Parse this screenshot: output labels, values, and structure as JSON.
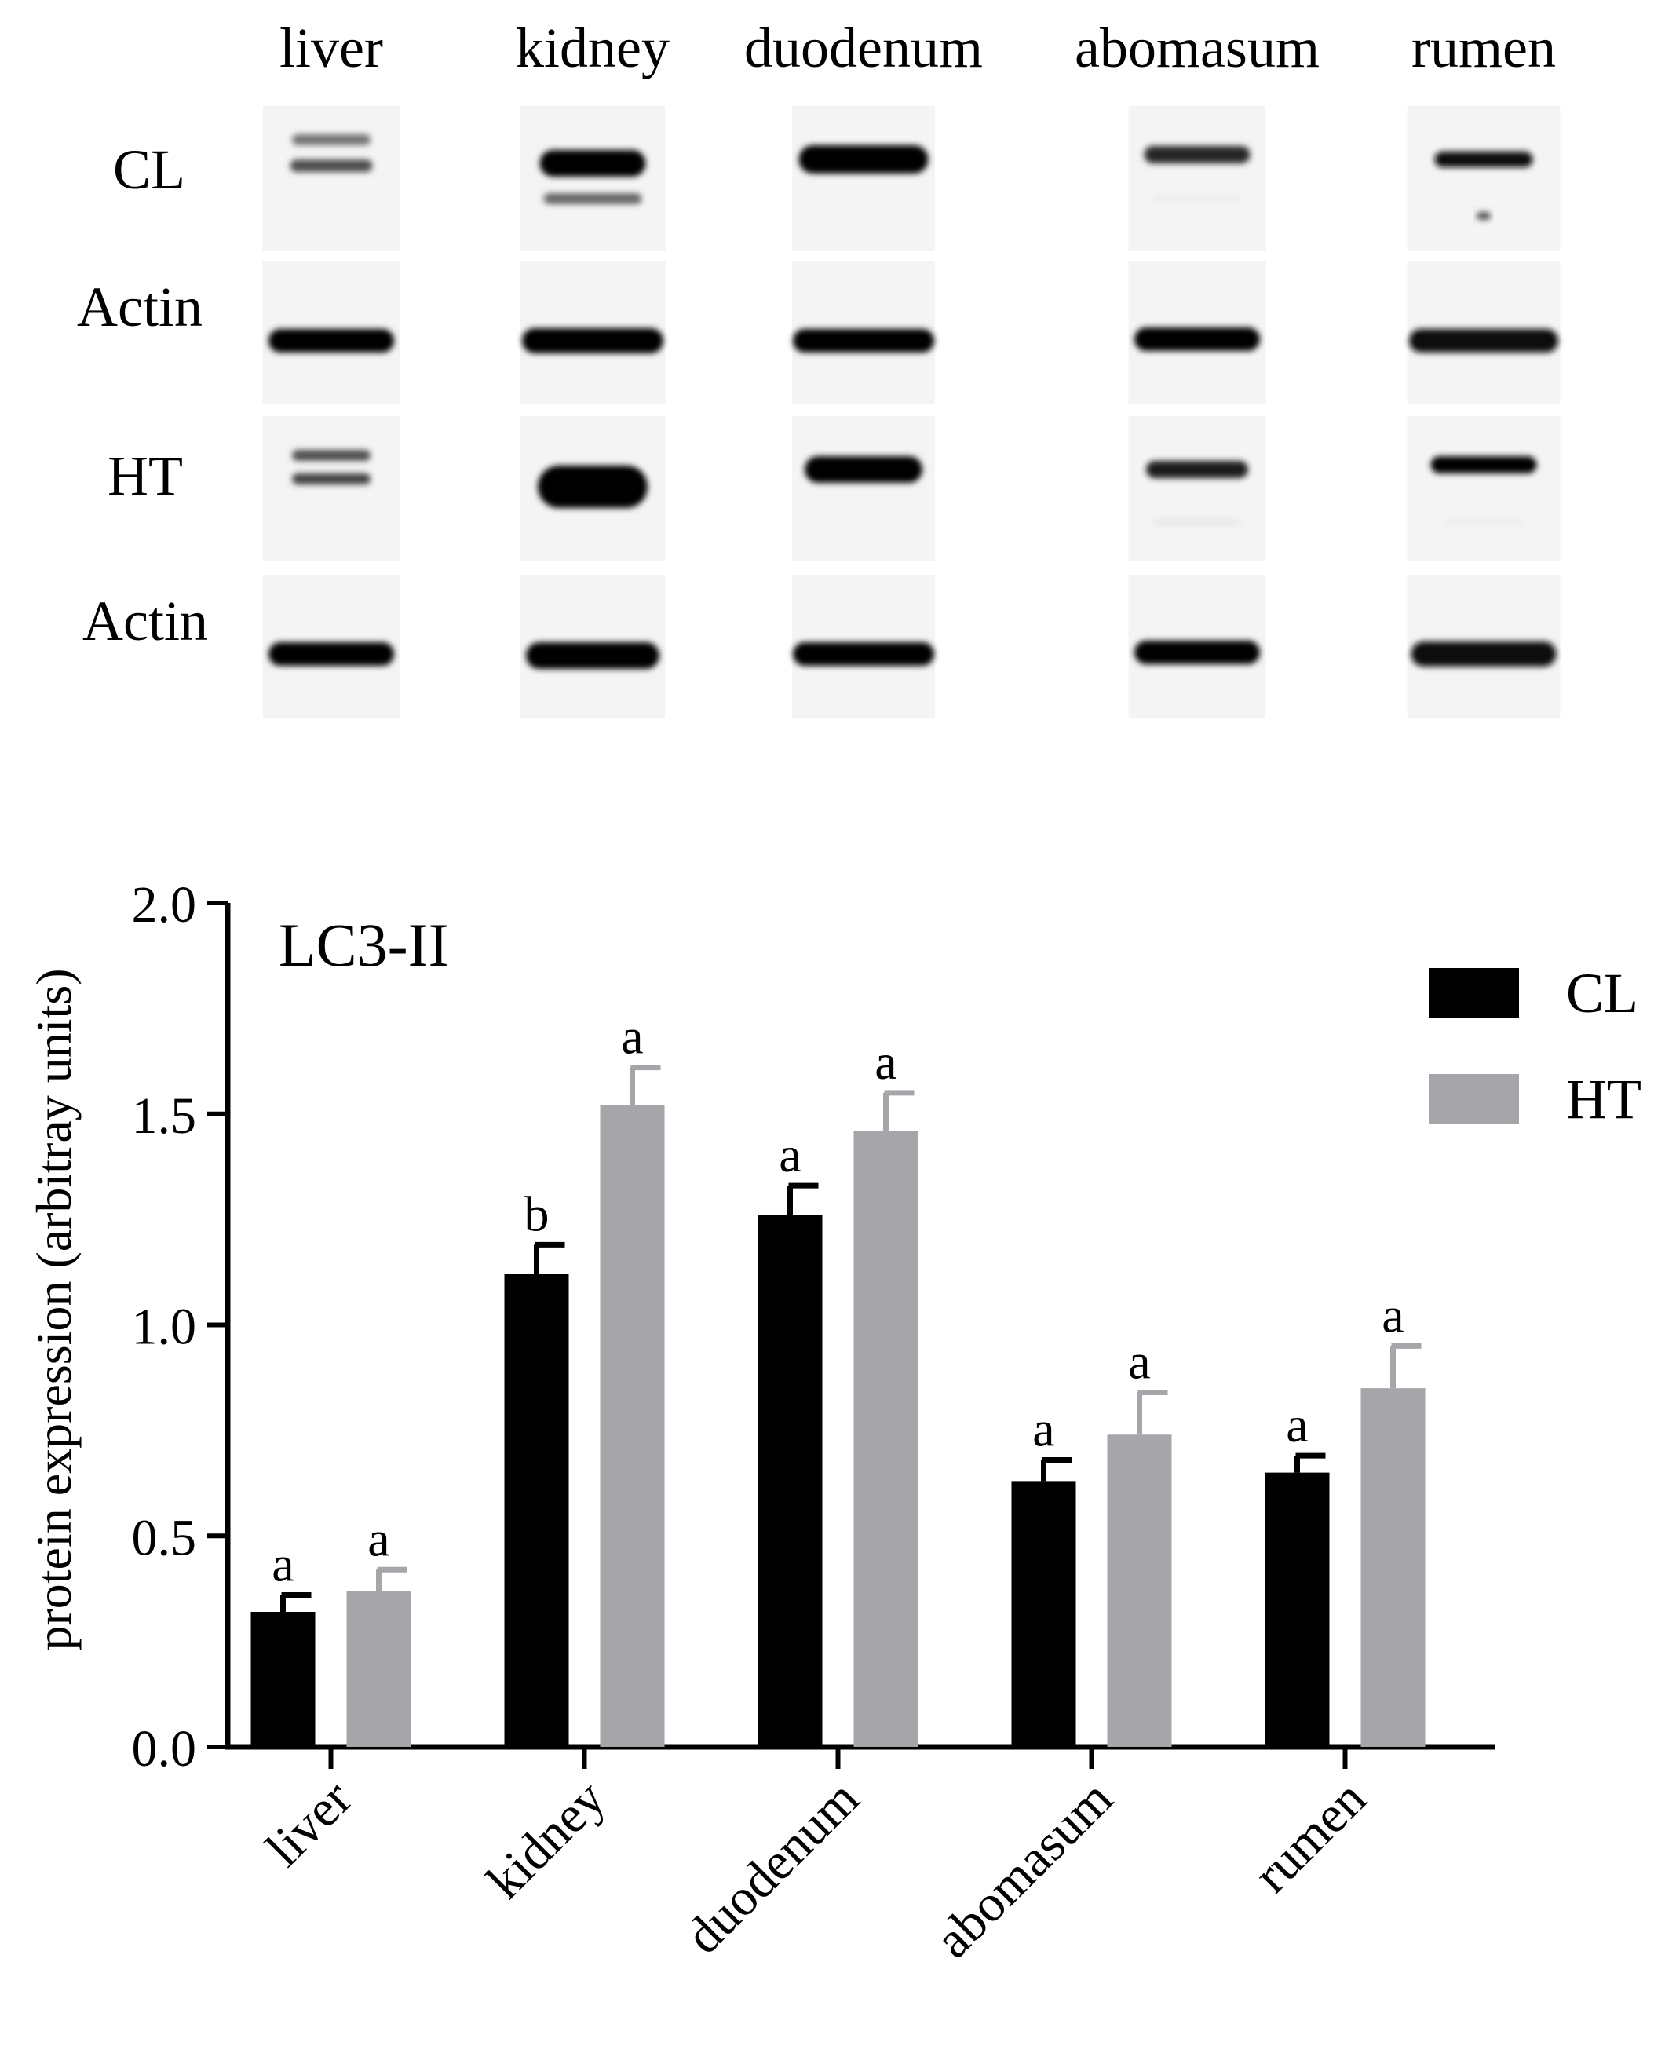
{
  "blot": {
    "tissues": [
      "liver",
      "kidney",
      "duodenum",
      "abomasum",
      "rumen"
    ],
    "row_labels": [
      "CL",
      "Actin",
      "HT",
      "Actin"
    ]
  },
  "chart_data": {
    "type": "bar",
    "title": "LC3-II",
    "xlabel": "",
    "ylabel": "protein expression (arbitray units)",
    "categories": [
      "liver",
      "kidney",
      "duodenum",
      "abomasum",
      "rumen"
    ],
    "ylim": [
      0,
      2.0
    ],
    "yticks": [
      "0.0",
      "0.5",
      "1.0",
      "1.5",
      "2.0"
    ],
    "legend_position": "top-right",
    "series": [
      {
        "name": "CL",
        "color": "#000000",
        "values": [
          0.32,
          1.12,
          1.26,
          0.63,
          0.65
        ],
        "errors": [
          0.04,
          0.07,
          0.07,
          0.05,
          0.04
        ],
        "letters": [
          "a",
          "b",
          "a",
          "a",
          "a"
        ]
      },
      {
        "name": "HT",
        "color": "#a6a6aa",
        "values": [
          0.37,
          1.52,
          1.46,
          0.74,
          0.85
        ],
        "errors": [
          0.05,
          0.09,
          0.09,
          0.1,
          0.1
        ],
        "letters": [
          "a",
          "a",
          "a",
          "a",
          "a"
        ]
      }
    ]
  }
}
